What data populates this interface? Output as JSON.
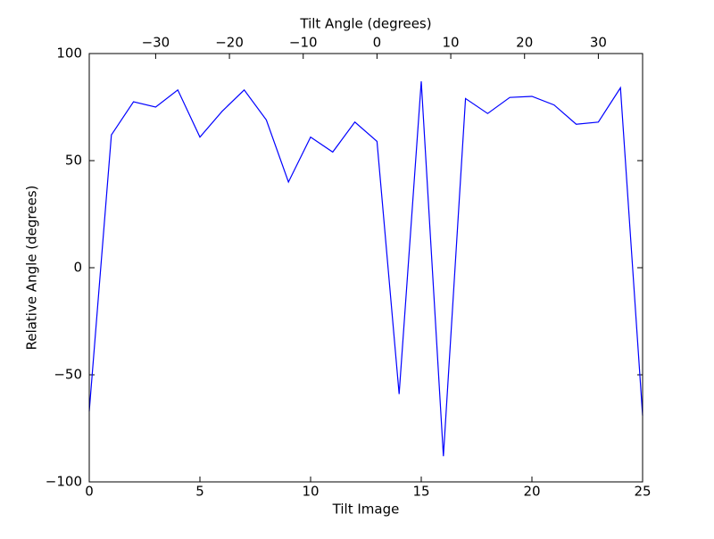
{
  "chart_data": {
    "type": "line",
    "xlabel": "Tilt Image",
    "ylabel": "Relative Angle (degrees)",
    "x2label": "Tilt Angle (degrees)",
    "x": [
      0,
      1,
      2,
      3,
      4,
      5,
      6,
      7,
      8,
      9,
      10,
      11,
      12,
      13,
      14,
      15,
      16,
      17,
      18,
      19,
      20,
      21,
      22,
      23,
      24,
      25
    ],
    "series": [
      {
        "color": "#0000ff",
        "values": [
          -67,
          62,
          77.5,
          75,
          83,
          61,
          73,
          83,
          69,
          40,
          61,
          54,
          68,
          59,
          -59,
          87,
          -88,
          79,
          72,
          79.5,
          80,
          76,
          67,
          68,
          84,
          -69
        ]
      }
    ],
    "xlim": [
      0,
      25
    ],
    "xticks": [
      0,
      5,
      10,
      15,
      20,
      25
    ],
    "ylim": [
      -100,
      100
    ],
    "yticks": [
      {
        "value": -100,
        "label": "−100"
      },
      {
        "value": -50,
        "label": "−50"
      },
      0,
      50,
      100
    ],
    "x2lim": [
      -39,
      36
    ],
    "x2ticks": [
      {
        "value": -30,
        "label": "−30"
      },
      {
        "value": -20,
        "label": "−20"
      },
      {
        "value": -10,
        "label": "−10"
      },
      0,
      10,
      20,
      30
    ],
    "grid": false
  }
}
